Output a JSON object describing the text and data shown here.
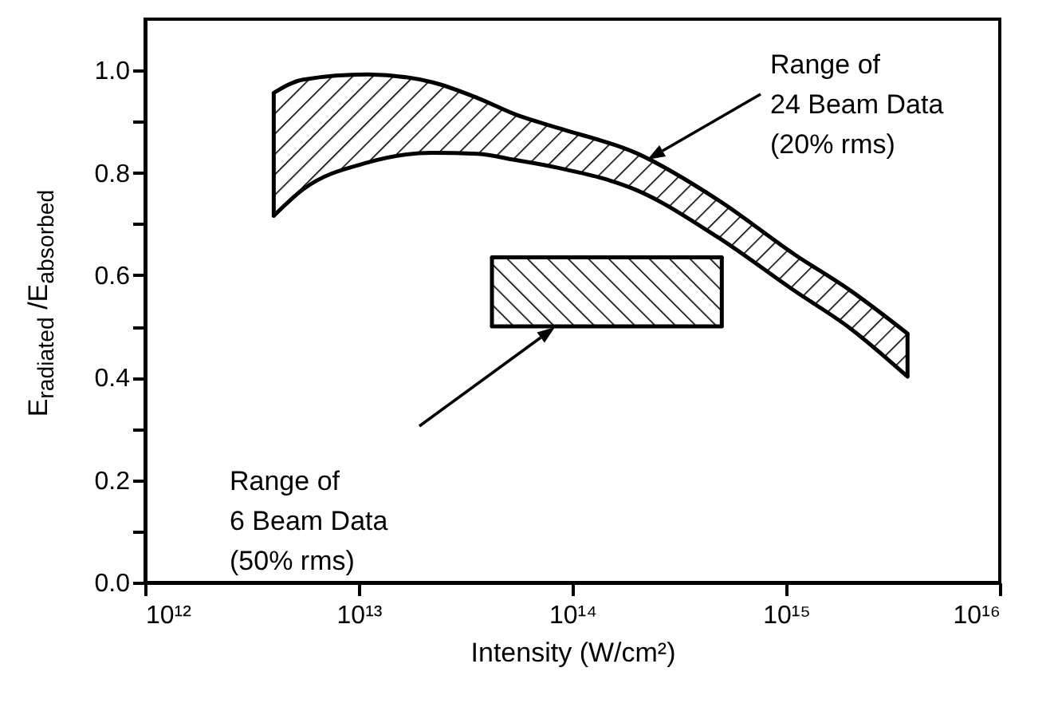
{
  "chart_data": {
    "type": "line",
    "xlabel": "Intensity (W/cm²)",
    "ylabel": "E$_{radiated}$ /E$_{absorbed}$",
    "log": "x",
    "xlim": [
      1000000000000.0,
      1e+16
    ],
    "ylim": [
      0,
      1.1
    ],
    "xticks": [
      {
        "value": 1000000000000.0,
        "label": "10¹²"
      },
      {
        "value": 10000000000000.0,
        "label": "10¹³"
      },
      {
        "value": 100000000000000.0,
        "label": "10¹⁴"
      },
      {
        "value": 1000000000000000.0,
        "label": "10¹⁵"
      },
      {
        "value": 1e+16,
        "label": "10¹⁶"
      }
    ],
    "yticks": [
      {
        "value": 0,
        "label": "0.0"
      },
      {
        "value": 0.1,
        "label": null
      },
      {
        "value": 0.2,
        "label": "0.2"
      },
      {
        "value": 0.3,
        "label": null
      },
      {
        "value": 0.4,
        "label": "0.4"
      },
      {
        "value": 0.5,
        "label": null
      },
      {
        "value": 0.6,
        "label": "0.6"
      },
      {
        "value": 0.7,
        "label": null
      },
      {
        "value": 0.8,
        "label": "0.8"
      },
      {
        "value": 0.9,
        "label": null
      },
      {
        "value": 1,
        "label": "1.0"
      }
    ],
    "grid": false,
    "marker": "none",
    "line_style": "solid",
    "series": [
      {
        "color": "#000000",
        "x": [
          4000000000000.0,
          5500000000000.0,
          11000000000000.0,
          22000000000000.0,
          36000000000000.0,
          54000000000000.0,
          85000000000000.0,
          200000000000000.0,
          480000000000000.0,
          1100000000000000.0,
          2000000000000000.0,
          3700000000000000.0
        ],
        "values": [
          0.956,
          0.982,
          0.992,
          0.977,
          0.946,
          0.914,
          0.888,
          0.838,
          0.747,
          0.64,
          0.57,
          0.486
        ]
      },
      {
        "color": "#000000",
        "x": [
          4000000000000.0,
          5500000000000.0,
          11000000000000.0,
          22000000000000.0,
          36000000000000.0,
          54000000000000.0,
          85000000000000.0,
          200000000000000.0,
          480000000000000.0,
          1100000000000000.0,
          2000000000000000.0,
          3700000000000000.0
        ],
        "values": [
          0.716,
          0.768,
          0.82,
          0.839,
          0.837,
          0.825,
          0.81,
          0.766,
          0.674,
          0.569,
          0.496,
          0.402
        ]
      },
      {
        "color": "#000000",
        "x": [
          42000000000000.0,
          500000000000000.0
        ],
        "values": [
          0.635,
          0.635
        ]
      },
      {
        "color": "#000000",
        "x": [
          42000000000000.0,
          500000000000000.0
        ],
        "values": [
          0.5,
          0.5
        ]
      }
    ],
    "annotations": [
      "Range of\n24 Beam Data\n(20% rms)",
      "Range of\n6 Beam Data\n(50% rms)"
    ]
  }
}
